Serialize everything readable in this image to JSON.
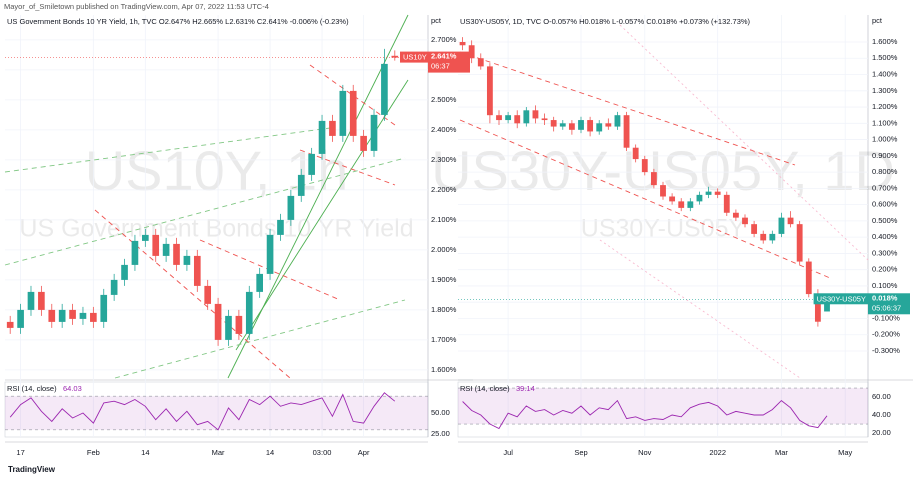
{
  "header": "Mayor_of_Smiletown published on TradingView.com, Apr 07, 2022 11:53 UTC-4",
  "footer": "TradingView",
  "chart_data": [
    {
      "type": "candlestick",
      "title": "US Government Bonds 10 YR Yield, 1h, TVC  O2.647%  H2.665%  L2.631%  C2.641%  -0.006% (-0.23%)",
      "watermark": "US10Y, 1h",
      "watermark_subtitle": "US Government Bonds 10 YR Yield",
      "axis_unit": "pct",
      "up_color": "#26a69a",
      "down_color": "#ef5350",
      "categories": [
        null,
        "17",
        null,
        null,
        null,
        null,
        null,
        null,
        "Feb",
        null,
        null,
        null,
        null,
        "14",
        null,
        null,
        null,
        null,
        null,
        null,
        "Mar",
        null,
        null,
        null,
        null,
        "14",
        null,
        null,
        null,
        null,
        "03:00",
        null,
        null,
        null,
        "Apr",
        null,
        null,
        null
      ],
      "open": [
        1.76,
        1.74,
        1.8,
        1.86,
        1.8,
        1.76,
        1.8,
        1.77,
        1.79,
        1.76,
        1.85,
        1.9,
        1.95,
        2.03,
        2.05,
        1.98,
        2.02,
        1.95,
        1.98,
        1.88,
        1.82,
        1.7,
        1.78,
        1.72,
        1.86,
        1.92,
        2.05,
        2.1,
        2.18,
        2.25,
        2.32,
        2.43,
        2.38,
        2.53,
        2.38,
        2.33,
        2.45,
        2.647
      ],
      "high": [
        1.78,
        1.82,
        1.88,
        1.88,
        1.82,
        1.82,
        1.82,
        1.81,
        1.81,
        1.87,
        1.92,
        1.97,
        2.05,
        2.07,
        2.07,
        2.04,
        2.04,
        2.0,
        2.0,
        1.9,
        1.84,
        1.8,
        1.8,
        1.88,
        1.94,
        2.07,
        2.12,
        2.2,
        2.27,
        2.34,
        2.45,
        2.45,
        2.55,
        2.55,
        2.4,
        2.47,
        2.67,
        2.665
      ],
      "low": [
        1.72,
        1.72,
        1.78,
        1.78,
        1.74,
        1.74,
        1.75,
        1.75,
        1.74,
        1.74,
        1.83,
        1.88,
        1.93,
        2.01,
        1.96,
        1.96,
        1.93,
        1.93,
        1.86,
        1.8,
        1.68,
        1.68,
        1.7,
        1.7,
        1.84,
        1.9,
        2.03,
        2.08,
        2.16,
        2.23,
        2.3,
        2.36,
        2.36,
        2.36,
        2.31,
        2.31,
        2.43,
        2.631
      ],
      "close": [
        1.74,
        1.8,
        1.86,
        1.8,
        1.76,
        1.8,
        1.77,
        1.79,
        1.76,
        1.85,
        1.9,
        1.95,
        2.03,
        2.05,
        1.98,
        2.02,
        1.95,
        1.98,
        1.88,
        1.82,
        1.7,
        1.78,
        1.72,
        1.86,
        1.92,
        2.05,
        2.1,
        2.18,
        2.25,
        2.32,
        2.43,
        2.38,
        2.53,
        2.38,
        2.33,
        2.45,
        2.62,
        2.641
      ],
      "ylim": [
        1.573,
        2.783
      ],
      "yticks": [
        {
          "value": 1.6,
          "label": "1.600%"
        },
        {
          "value": 1.7,
          "label": "1.700%"
        },
        {
          "value": 1.8,
          "label": "1.800%"
        },
        {
          "value": 1.9,
          "label": "1.900%"
        },
        {
          "value": 2.0,
          "label": "2.000%"
        },
        {
          "value": 2.1,
          "label": "2.100%"
        },
        {
          "value": 2.2,
          "label": "2.200%"
        },
        {
          "value": 2.3,
          "label": "2.300%"
        },
        {
          "value": 2.4,
          "label": "2.400%"
        },
        {
          "value": 2.5,
          "label": "2.500%"
        },
        {
          "value": 2.6,
          "label": "2.600%"
        },
        {
          "value": 2.7,
          "label": "2.700%"
        }
      ],
      "last": {
        "name": "US10Y",
        "value": 2.641,
        "label": "2.641%",
        "time": "06:37"
      },
      "rsi": {
        "name": "RSI (14, close)",
        "last": 64.03,
        "color": "#9c27b0",
        "band": [
          70,
          30
        ],
        "ylim": [
          21.4,
          86.9
        ],
        "yticks": [
          {
            "value": 50,
            "label": "50.00"
          },
          {
            "value": 25,
            "label": "25.00"
          }
        ],
        "values": [
          45,
          60,
          68,
          52,
          40,
          55,
          44,
          50,
          38,
          62,
          64,
          60,
          66,
          58,
          42,
          55,
          40,
          52,
          36,
          40,
          30,
          56,
          42,
          66,
          60,
          70,
          58,
          62,
          60,
          64,
          68,
          46,
          72,
          40,
          38,
          58,
          74,
          64.03
        ]
      }
    },
    {
      "type": "candlestick",
      "title": "US30Y-US05Y, 1D, TVC  O-0.057%  H0.018%  L-0.057%  C0.018%  +0.073% (+132.73%)",
      "watermark": "US30Y-US05Y, 1D",
      "watermark_subtitle": "US30Y-US05Y",
      "axis_unit": "pct",
      "up_color": "#26a69a",
      "down_color": "#ef5350",
      "categories": [
        null,
        null,
        null,
        null,
        null,
        "Jul",
        null,
        null,
        null,
        null,
        null,
        null,
        null,
        "Sep",
        null,
        null,
        null,
        null,
        null,
        null,
        "Nov",
        null,
        null,
        null,
        null,
        null,
        null,
        null,
        "2022",
        null,
        null,
        null,
        null,
        null,
        null,
        "Mar",
        null,
        null,
        null,
        null,
        null,
        null,
        "May",
        null,
        null
      ],
      "open": [
        1.6,
        1.58,
        1.5,
        1.45,
        1.15,
        1.12,
        1.15,
        1.1,
        1.18,
        1.13,
        1.12,
        1.08,
        1.1,
        1.06,
        1.12,
        1.05,
        1.1,
        1.08,
        1.15,
        0.95,
        0.88,
        0.8,
        0.72,
        0.65,
        0.62,
        0.58,
        0.62,
        0.66,
        0.68,
        0.66,
        0.55,
        0.52,
        0.48,
        0.42,
        0.38,
        0.42,
        0.52,
        0.48,
        0.25,
        0.05,
        -0.057,
        null,
        null,
        null,
        null
      ],
      "high": [
        1.63,
        1.61,
        1.53,
        1.47,
        1.18,
        1.17,
        1.18,
        1.2,
        1.21,
        1.16,
        1.14,
        1.12,
        1.12,
        1.14,
        1.14,
        1.12,
        1.13,
        1.17,
        1.17,
        0.97,
        0.9,
        0.82,
        0.74,
        0.67,
        0.64,
        0.64,
        0.68,
        0.71,
        0.7,
        0.68,
        0.57,
        0.54,
        0.5,
        0.44,
        0.44,
        0.55,
        0.56,
        0.5,
        0.27,
        0.08,
        0.018,
        null,
        null,
        null,
        null
      ],
      "low": [
        1.55,
        1.47,
        1.43,
        1.1,
        1.09,
        1.1,
        1.07,
        1.08,
        1.1,
        1.09,
        1.05,
        1.06,
        1.03,
        1.04,
        1.02,
        1.03,
        1.06,
        1.06,
        0.93,
        0.86,
        0.78,
        0.7,
        0.63,
        0.6,
        0.56,
        0.56,
        0.6,
        0.64,
        0.64,
        0.53,
        0.5,
        0.46,
        0.4,
        0.36,
        0.36,
        0.4,
        0.46,
        0.23,
        0.03,
        -0.15,
        -0.057,
        null,
        null,
        null,
        null
      ],
      "close": [
        1.58,
        1.5,
        1.45,
        1.15,
        1.12,
        1.15,
        1.1,
        1.18,
        1.13,
        1.12,
        1.08,
        1.1,
        1.06,
        1.12,
        1.05,
        1.1,
        1.08,
        1.15,
        0.95,
        0.88,
        0.8,
        0.72,
        0.65,
        0.62,
        0.58,
        0.62,
        0.66,
        0.68,
        0.66,
        0.55,
        0.52,
        0.48,
        0.42,
        0.38,
        0.42,
        0.52,
        0.48,
        0.25,
        0.05,
        -0.12,
        0.018,
        null,
        null,
        null,
        null
      ],
      "ylim": [
        -0.466,
        1.766
      ],
      "yticks": [
        {
          "value": 1.6,
          "label": "1.600%"
        },
        {
          "value": 1.5,
          "label": "1.500%"
        },
        {
          "value": 1.4,
          "label": "1.400%"
        },
        {
          "value": 1.3,
          "label": "1.300%"
        },
        {
          "value": 1.2,
          "label": "1.200%"
        },
        {
          "value": 1.1,
          "label": "1.100%"
        },
        {
          "value": 1.0,
          "label": "1.000%"
        },
        {
          "value": 0.9,
          "label": "0.900%"
        },
        {
          "value": 0.8,
          "label": "0.800%"
        },
        {
          "value": 0.7,
          "label": "0.700%"
        },
        {
          "value": 0.6,
          "label": "0.600%"
        },
        {
          "value": 0.5,
          "label": "0.500%"
        },
        {
          "value": 0.4,
          "label": "0.400%"
        },
        {
          "value": 0.3,
          "label": "0.300%"
        },
        {
          "value": 0.2,
          "label": "0.200%"
        },
        {
          "value": 0.1,
          "label": "0.100%"
        },
        {
          "value": 0,
          "label": "0.000%"
        },
        {
          "value": -0.1,
          "label": "-0.100%"
        },
        {
          "value": -0.2,
          "label": "-0.200%"
        },
        {
          "value": -0.3,
          "label": "-0.300%"
        }
      ],
      "last": {
        "name": "US30Y-US05Y",
        "value": 0.018,
        "label": "0.018%",
        "time": "05:06:37"
      },
      "rsi": {
        "name": "RSI (14, close)",
        "last": 39.14,
        "color": "#9c27b0",
        "band": [
          70,
          30
        ],
        "ylim": [
          15.6,
          76.7
        ],
        "yticks": [
          {
            "value": 60,
            "label": "60.00"
          },
          {
            "value": 40,
            "label": "40.00"
          },
          {
            "value": 20,
            "label": "20.00"
          }
        ],
        "values": [
          55,
          45,
          40,
          30,
          25,
          42,
          38,
          50,
          44,
          46,
          40,
          45,
          42,
          50,
          40,
          48,
          46,
          56,
          36,
          38,
          34,
          36,
          35,
          40,
          38,
          48,
          52,
          54,
          50,
          40,
          44,
          42,
          40,
          40,
          46,
          56,
          48,
          34,
          28,
          26,
          39.14,
          null,
          null,
          null,
          null
        ]
      }
    }
  ]
}
